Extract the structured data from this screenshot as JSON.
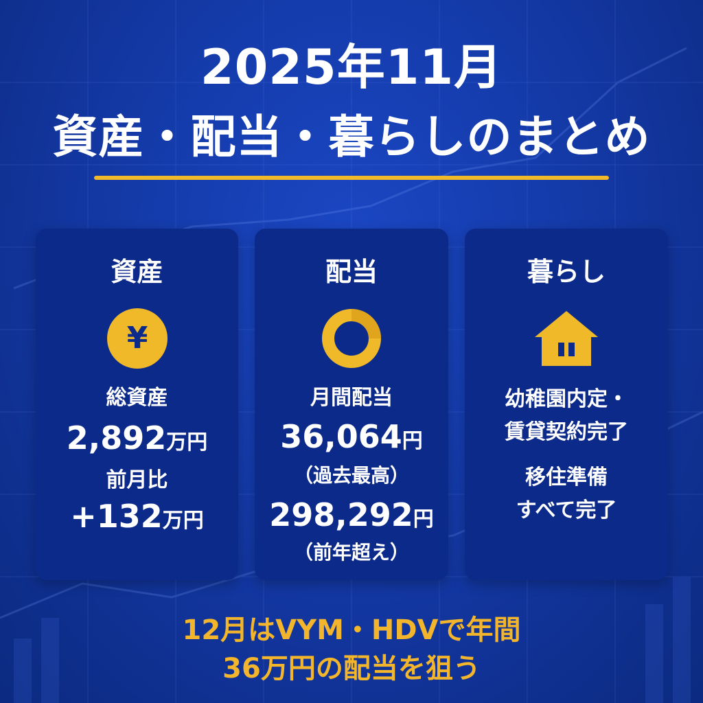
{
  "title": {
    "line1": "2025年11月",
    "line2": "資産・配当・暮らしのまとめ"
  },
  "colors": {
    "accent": "#f0b92a",
    "card": "#0c2a8a",
    "background": "#143aa8"
  },
  "cards": {
    "assets": {
      "title": "資産",
      "icon": "yen-coin-icon",
      "icon_glyph": "¥",
      "total_label": "総資産",
      "total_value": "2,892",
      "total_unit": "万円",
      "change_label": "前月比",
      "change_value": "+132",
      "change_unit": "万円"
    },
    "dividend": {
      "title": "配当",
      "icon": "ring-icon",
      "monthly_label": "月間配当",
      "monthly_value": "36,064",
      "monthly_unit": "円",
      "monthly_note": "（過去最高）",
      "annual_value": "298,292",
      "annual_unit": "円",
      "annual_note": "（前年超え）"
    },
    "life": {
      "title": "暮らし",
      "icon": "house-icon",
      "line1": "幼稚園内定・",
      "line2": "賃貸契約完了",
      "line3": "移住準備",
      "line4": "すべて完了"
    }
  },
  "footer": {
    "line1": "12月はVYM・HDVで年間",
    "line2": "36万円の配当を狙う"
  }
}
